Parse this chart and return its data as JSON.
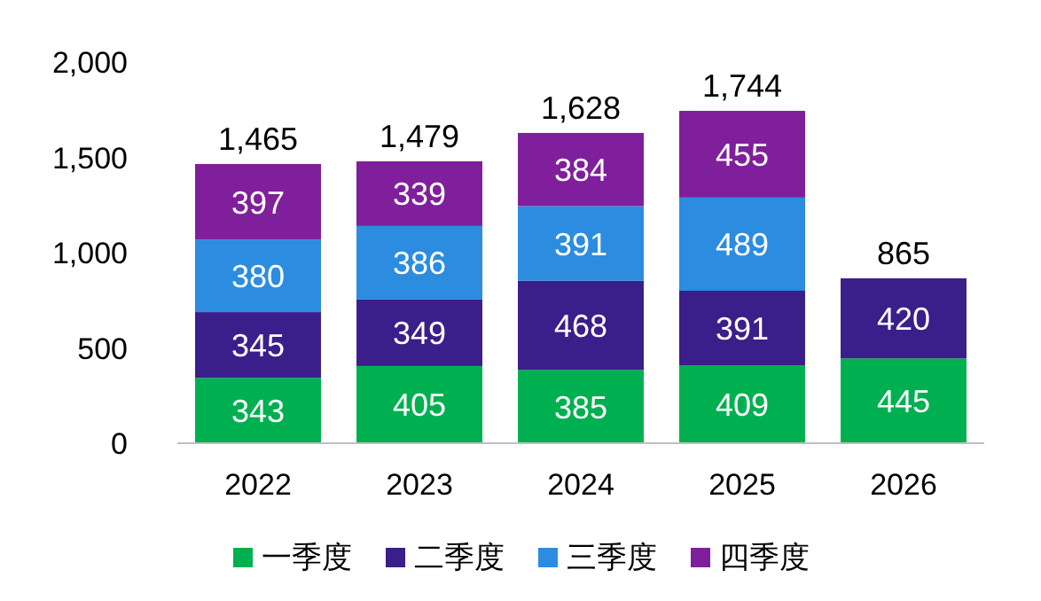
{
  "chart_data": {
    "type": "bar",
    "stacked": true,
    "categories": [
      "2022",
      "2023",
      "2024",
      "2025",
      "2026"
    ],
    "series": [
      {
        "name": "一季度",
        "color": "#00b050",
        "values": [
          343,
          405,
          385,
          409,
          445
        ]
      },
      {
        "name": "二季度",
        "color": "#3a1e8a",
        "values": [
          345,
          349,
          468,
          391,
          420
        ]
      },
      {
        "name": "三季度",
        "color": "#2b8ce0",
        "values": [
          380,
          386,
          391,
          489,
          null
        ]
      },
      {
        "name": "四季度",
        "color": "#7f1f9b",
        "values": [
          397,
          339,
          384,
          455,
          null
        ]
      }
    ],
    "totals": [
      "1,465",
      "1,479",
      "1,628",
      "1,744",
      "865"
    ],
    "data_labels": true,
    "ylim": [
      0,
      2000
    ],
    "yticks": [
      0,
      500,
      {
        "value": 1000,
        "label": "1,000"
      },
      {
        "value": 1500,
        "label": "1,500"
      },
      {
        "value": 2000,
        "label": "2,000"
      }
    ],
    "grid": false,
    "legend": "bottom"
  }
}
